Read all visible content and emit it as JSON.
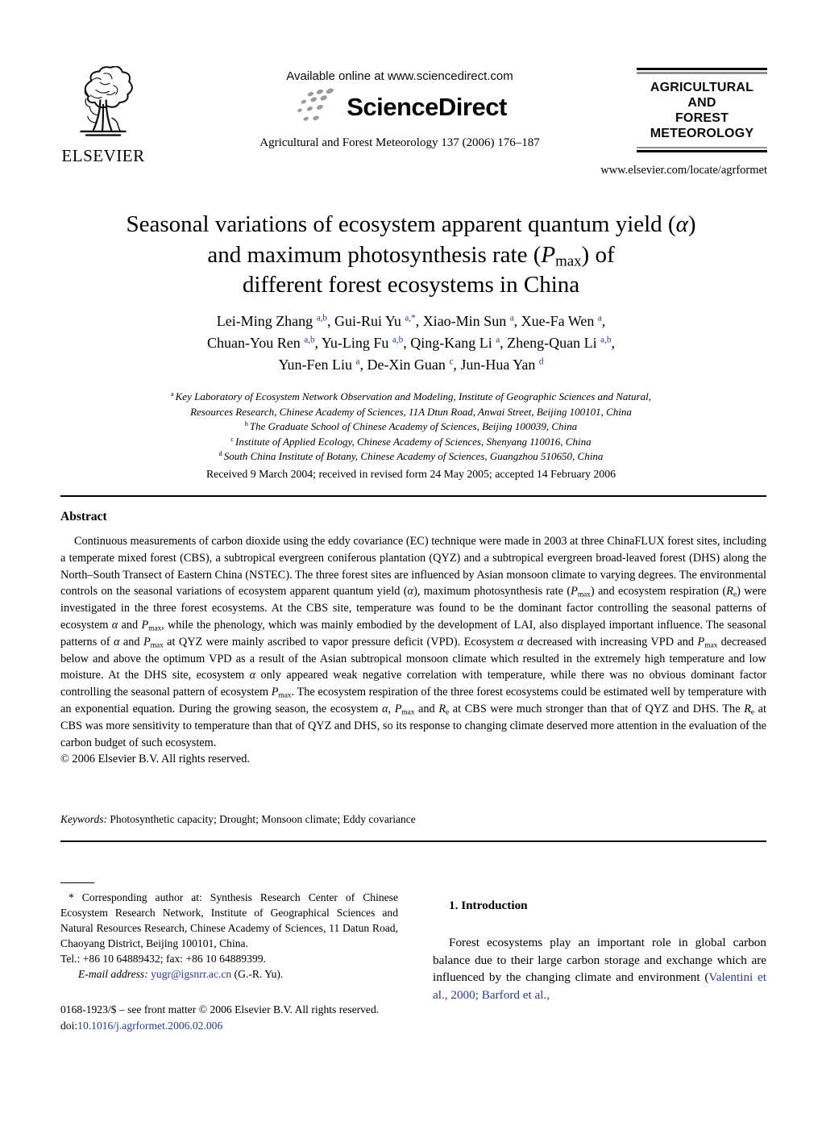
{
  "colors": {
    "link": "#2b38a0",
    "dots_gray": "#9a9a9a",
    "rule_gray": "#8f8f8f"
  },
  "header": {
    "elsevier_word": "ELSEVIER",
    "available_online": "Available online at www.sciencedirect.com",
    "sciencedirect_word": "ScienceDirect",
    "journal_line": "Agricultural and Forest Meteorology 137 (2006) 176–187",
    "journal_box_lines": [
      "AGRICULTURAL",
      "AND",
      "FOREST",
      "METEOROLOGY"
    ],
    "locate_url": "www.elsevier.com/locate/agrformet"
  },
  "title": {
    "line1": [
      {
        "t": "Seasonal variations of ecosystem apparent quantum yield ("
      },
      {
        "t": "α",
        "c": "i"
      },
      {
        "t": ")"
      }
    ],
    "line2": [
      {
        "t": "and maximum photosynthesis rate ("
      },
      {
        "t": "P",
        "c": "i"
      },
      {
        "t": "max",
        "c": "sub"
      },
      {
        "t": ") of"
      }
    ],
    "line3": "different forest ecosystems in China"
  },
  "authors": {
    "line1": [
      {
        "t": "Lei-Ming Zhang "
      },
      {
        "t": "a,b",
        "c": "sup"
      },
      {
        "t": ", Gui-Rui Yu "
      },
      {
        "t": "a,*",
        "c": "sup"
      },
      {
        "t": ", Xiao-Min Sun "
      },
      {
        "t": "a",
        "c": "sup"
      },
      {
        "t": ", Xue-Fa Wen "
      },
      {
        "t": "a",
        "c": "sup"
      },
      {
        "t": ","
      }
    ],
    "line2": [
      {
        "t": "Chuan-You Ren "
      },
      {
        "t": "a,b",
        "c": "sup"
      },
      {
        "t": ", Yu-Ling Fu "
      },
      {
        "t": "a,b",
        "c": "sup"
      },
      {
        "t": ", Qing-Kang Li "
      },
      {
        "t": "a",
        "c": "sup"
      },
      {
        "t": ", Zheng-Quan Li "
      },
      {
        "t": "a,b",
        "c": "sup"
      },
      {
        "t": ","
      }
    ],
    "line3": [
      {
        "t": "Yun-Fen Liu "
      },
      {
        "t": "a",
        "c": "sup"
      },
      {
        "t": ", De-Xin Guan "
      },
      {
        "t": "c",
        "c": "sup"
      },
      {
        "t": ", Jun-Hua Yan "
      },
      {
        "t": "d",
        "c": "sup"
      }
    ]
  },
  "affiliations": {
    "a1": [
      {
        "t": "a ",
        "c": "sup"
      },
      {
        "t": "Key Laboratory of Ecosystem Network Observation and Modeling, Institute of Geographic Sciences and Natural,",
        "c": "i"
      }
    ],
    "a2": [
      {
        "t": "Resources Research, Chinese Academy of Sciences, 11A Dtun Road, Anwai Street, Beijing 100101, China",
        "c": "i"
      }
    ],
    "b": [
      {
        "t": "b ",
        "c": "sup"
      },
      {
        "t": "The Graduate School of Chinese Academy of Sciences, Beijing 100039, China",
        "c": "i"
      }
    ],
    "c": [
      {
        "t": "c ",
        "c": "sup"
      },
      {
        "t": "Institute of Applied Ecology, Chinese Academy of Sciences, Shenyang 110016, China",
        "c": "i"
      }
    ],
    "d": [
      {
        "t": "d ",
        "c": "sup"
      },
      {
        "t": "South China Institute of Botany, Chinese Academy of Sciences, Guangzhou 510650, China",
        "c": "i"
      }
    ],
    "received": "Received 9 March 2004; received in revised form 24 May 2005; accepted 14 February 2006"
  },
  "abstract": {
    "heading": "Abstract",
    "body": [
      {
        "t": "Continuous measurements of carbon dioxide using the eddy covariance (EC) technique were made in 2003 at three ChinaFLUX forest sites, including a temperate mixed forest (CBS), a subtropical evergreen coniferous plantation (QYZ) and a subtropical evergreen broad-leaved forest (DHS) along the North–South Transect of Eastern China (NSTEC). The three forest sites are influenced by Asian monsoon climate to varying degrees. The environmental controls on the seasonal variations of ecosystem apparent quantum yield ("
      },
      {
        "t": "α",
        "c": "i"
      },
      {
        "t": "), maximum photosynthesis rate ("
      },
      {
        "t": "P",
        "c": "i"
      },
      {
        "t": "max",
        "c": "sub"
      },
      {
        "t": ") and ecosystem respiration ("
      },
      {
        "t": "R",
        "c": "i"
      },
      {
        "t": "e",
        "c": "sub"
      },
      {
        "t": ") were investigated in the three forest ecosystems. At the CBS site, temperature was found to be the dominant factor controlling the seasonal patterns of ecosystem "
      },
      {
        "t": "α",
        "c": "i"
      },
      {
        "t": " and "
      },
      {
        "t": "P",
        "c": "i"
      },
      {
        "t": "max",
        "c": "sub"
      },
      {
        "t": ", while the phenology, which was mainly embodied by the development of LAI, also displayed important influence. The seasonal patterns of "
      },
      {
        "t": "α",
        "c": "i"
      },
      {
        "t": " and "
      },
      {
        "t": "P",
        "c": "i"
      },
      {
        "t": "max",
        "c": "sub"
      },
      {
        "t": " at QYZ were mainly ascribed to vapor pressure deficit (VPD). Ecosystem "
      },
      {
        "t": "α",
        "c": "i"
      },
      {
        "t": " decreased with increasing VPD and "
      },
      {
        "t": "P",
        "c": "i"
      },
      {
        "t": "max",
        "c": "sub"
      },
      {
        "t": " decreased below and above the optimum VPD as a result of the Asian subtropical monsoon climate which resulted in the extremely high temperature and low moisture. At the DHS site, ecosystem "
      },
      {
        "t": "α",
        "c": "i"
      },
      {
        "t": " only appeared weak negative correlation with temperature, while there was no obvious dominant factor controlling the seasonal pattern of ecosystem "
      },
      {
        "t": "P",
        "c": "i"
      },
      {
        "t": "max",
        "c": "sub"
      },
      {
        "t": ". The ecosystem respiration of the three forest ecosystems could be estimated well by temperature with an exponential equation. During the growing season, the ecosystem "
      },
      {
        "t": "α",
        "c": "i"
      },
      {
        "t": ", "
      },
      {
        "t": "P",
        "c": "i"
      },
      {
        "t": "max",
        "c": "sub"
      },
      {
        "t": " and "
      },
      {
        "t": "R",
        "c": "i"
      },
      {
        "t": "e",
        "c": "sub"
      },
      {
        "t": " at CBS were much stronger than that of QYZ and DHS. The "
      },
      {
        "t": "R",
        "c": "i"
      },
      {
        "t": "e",
        "c": "sub"
      },
      {
        "t": " at CBS was more sensitivity to temperature than that of QYZ and DHS, so its response to changing climate deserved more attention in the evaluation of the carbon budget of such ecosystem."
      }
    ],
    "copyright": "© 2006 Elsevier B.V. All rights reserved.",
    "keywords": [
      {
        "t": "Keywords:",
        "c": "i"
      },
      {
        "t": "  Photosynthetic capacity; Drought; Monsoon climate; Eddy covariance"
      }
    ]
  },
  "footnote": {
    "p1": "* Corresponding author at: Synthesis Research Center of Chinese Ecosystem Research Network, Institute of Geographical Sciences and Natural Resources Research, Chinese Academy of Sciences, 11 Datun Road, Chaoyang District, Beijing 100101, China.",
    "p2": "Tel.: +86 10 64889432; fax: +86 10 64889399.",
    "p3": [
      {
        "t": "E-mail address: ",
        "c": "i"
      },
      {
        "t": "yugr@igsnrr.ac.cn",
        "c": "link",
        "n": "email-link"
      },
      {
        "t": " (G.-R. Yu)."
      }
    ]
  },
  "introduction": {
    "heading": "1. Introduction",
    "p1": [
      {
        "t": "Forest ecosystems play an important role in global carbon balance due to their large carbon storage and exchange which are influenced by the changing climate and environment ("
      },
      {
        "t": "Valentini et al., 2000; Barford et al.,",
        "c": "link",
        "n": "citation-link"
      }
    ]
  },
  "footer": {
    "line1": "0168-1923/$ – see front matter © 2006 Elsevier B.V. All rights reserved.",
    "line2": [
      {
        "t": "doi:"
      },
      {
        "t": "10.1016/j.agrformet.2006.02.006",
        "c": "link",
        "n": "doi-link"
      }
    ]
  }
}
